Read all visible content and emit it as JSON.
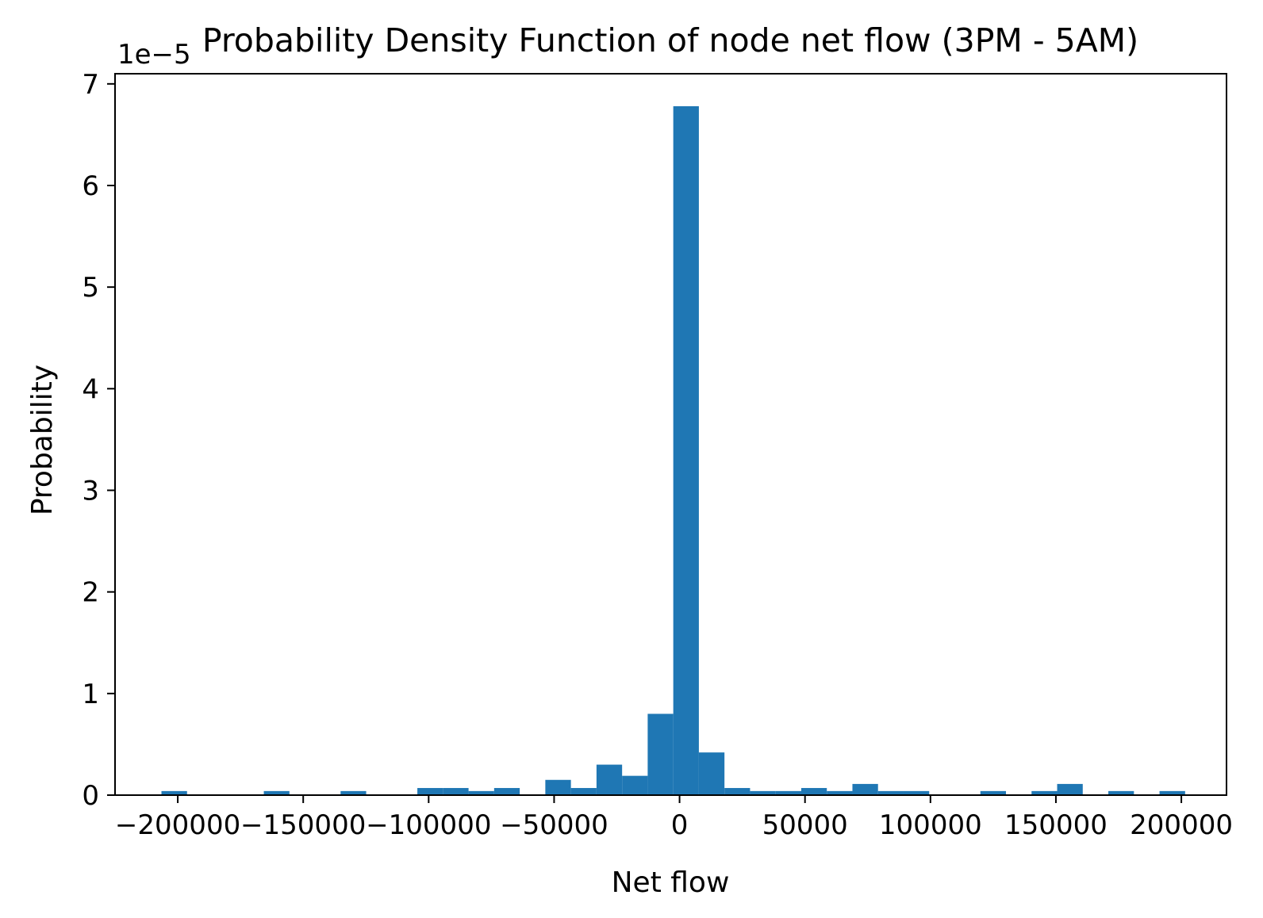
{
  "chart_data": {
    "type": "bar",
    "title": "Probability Density Function of node net flow (3PM - 5AM)",
    "xlabel": "Net flow",
    "ylabel": "Probability",
    "y_offset_label": "1e−5",
    "xlim": [
      -225000,
      218000
    ],
    "ylim": [
      0,
      7.1
    ],
    "y_scale_multiplier": 1e-05,
    "grid": false,
    "color": "#1f77b4",
    "bin_width": 10200,
    "x_ticks": [
      -200000,
      -150000,
      -100000,
      -50000,
      0,
      50000,
      100000,
      150000,
      200000
    ],
    "x_tick_labels": [
      "−200000",
      "−150000",
      "−100000",
      "−50000",
      "0",
      "50000",
      "100000",
      "150000",
      "200000"
    ],
    "y_ticks": [
      0,
      1,
      2,
      3,
      4,
      5,
      6,
      7
    ],
    "y_tick_labels": [
      "0",
      "1",
      "2",
      "3",
      "4",
      "5",
      "6",
      "7"
    ],
    "bins": [
      {
        "x0": -206500,
        "value": 0.04
      },
      {
        "x0": -165700,
        "value": 0.04
      },
      {
        "x0": -135100,
        "value": 0.04
      },
      {
        "x0": -104500,
        "value": 0.07
      },
      {
        "x0": -94300,
        "value": 0.07
      },
      {
        "x0": -84100,
        "value": 0.04
      },
      {
        "x0": -73900,
        "value": 0.07
      },
      {
        "x0": -53500,
        "value": 0.15
      },
      {
        "x0": -43300,
        "value": 0.07
      },
      {
        "x0": -33100,
        "value": 0.3
      },
      {
        "x0": -22900,
        "value": 0.19
      },
      {
        "x0": -12700,
        "value": 0.8
      },
      {
        "x0": -2500,
        "value": 6.78
      },
      {
        "x0": 7700,
        "value": 0.42
      },
      {
        "x0": 17900,
        "value": 0.07
      },
      {
        "x0": 28100,
        "value": 0.04
      },
      {
        "x0": 38300,
        "value": 0.04
      },
      {
        "x0": 48500,
        "value": 0.07
      },
      {
        "x0": 58700,
        "value": 0.04
      },
      {
        "x0": 68900,
        "value": 0.11
      },
      {
        "x0": 79100,
        "value": 0.04
      },
      {
        "x0": 89300,
        "value": 0.04
      },
      {
        "x0": 119900,
        "value": 0.04
      },
      {
        "x0": 140300,
        "value": 0.04
      },
      {
        "x0": 150500,
        "value": 0.11
      },
      {
        "x0": 170900,
        "value": 0.04
      },
      {
        "x0": 191300,
        "value": 0.04
      }
    ]
  }
}
